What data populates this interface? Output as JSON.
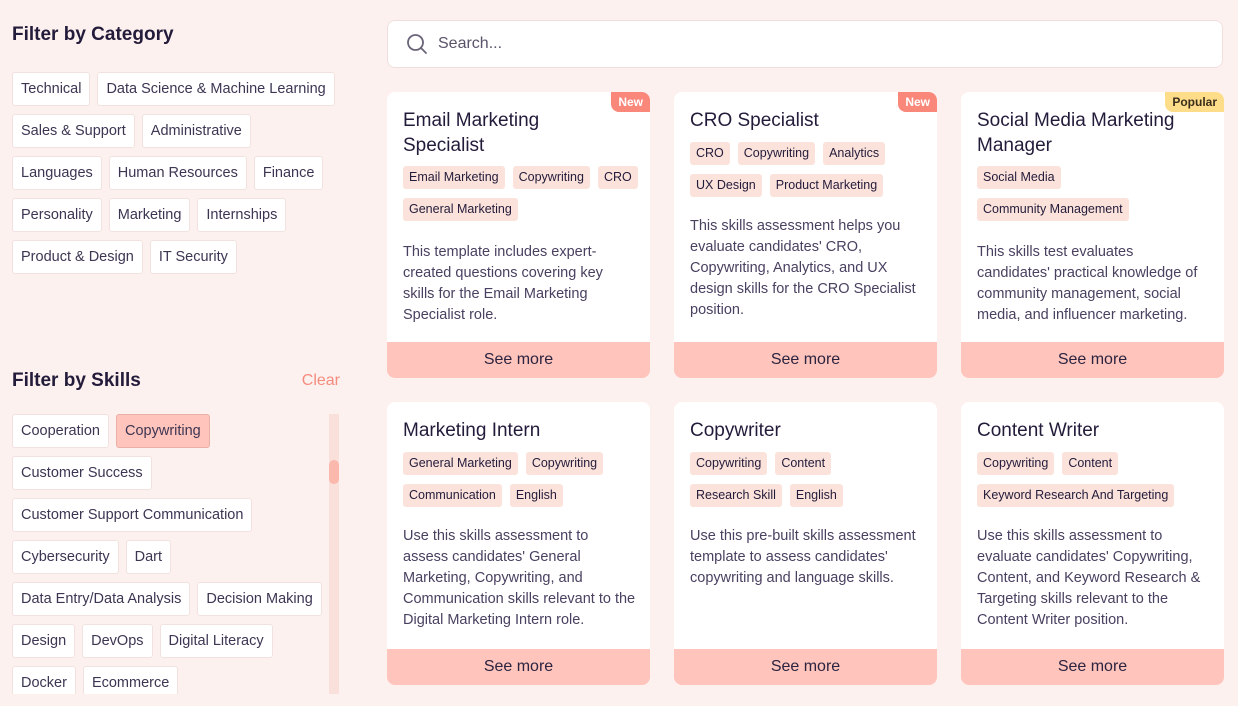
{
  "sidebar": {
    "category_title": "Filter by Category",
    "categories": [
      "Technical",
      "Data Science & Machine Learning",
      "Sales & Support",
      "Administrative",
      "Languages",
      "Human Resources",
      "Finance",
      "Personality",
      "Marketing",
      "Internships",
      "Product & Design",
      "IT Security"
    ],
    "skills_title": "Filter by Skills",
    "clear_label": "Clear",
    "skills": [
      {
        "label": "Cooperation",
        "selected": false
      },
      {
        "label": "Copywriting",
        "selected": true
      },
      {
        "label": "Customer Success",
        "selected": false
      },
      {
        "label": "Customer Support Communication",
        "selected": false
      },
      {
        "label": "Cybersecurity",
        "selected": false
      },
      {
        "label": "Dart",
        "selected": false
      },
      {
        "label": "Data Entry/Data Analysis",
        "selected": false
      },
      {
        "label": "Decision Making",
        "selected": false
      },
      {
        "label": "Design",
        "selected": false
      },
      {
        "label": "DevOps",
        "selected": false
      },
      {
        "label": "Digital Literacy",
        "selected": false
      },
      {
        "label": "Docker",
        "selected": false
      },
      {
        "label": "Ecommerce",
        "selected": false
      }
    ]
  },
  "search": {
    "placeholder": "Search...",
    "icon": "search-icon"
  },
  "cards": [
    {
      "title": "Email Marketing Specialist",
      "badge": "New",
      "tags": [
        "Email Marketing",
        "Copywriting",
        "CRO",
        "General Marketing"
      ],
      "description": "This template includes expert-created questions covering key skills for the Email Marketing Specialist role.",
      "button": "See more"
    },
    {
      "title": "CRO Specialist",
      "badge": "New",
      "tags": [
        "CRO",
        "Copywriting",
        "Analytics",
        "UX Design",
        "Product Marketing"
      ],
      "description": "This skills assessment helps you evaluate candidates' CRO, Copywriting, Analytics, and UX design skills for the CRO Specialist position.",
      "button": "See more"
    },
    {
      "title": "Social Media Marketing Manager",
      "badge": "Popular",
      "tags": [
        "Social Media",
        "Community Management"
      ],
      "description": "This skills test evaluates candidates' practical knowledge of community management, social media, and influencer marketing.",
      "button": "See more"
    },
    {
      "title": "Marketing Intern",
      "badge": "",
      "tags": [
        "General Marketing",
        "Copywriting",
        "Communication",
        "English"
      ],
      "description": "Use this skills assessment to assess candidates' General Marketing, Copywriting, and Communication skills relevant to the Digital Marketing Intern role.",
      "button": "See more"
    },
    {
      "title": "Copywriter",
      "badge": "",
      "tags": [
        "Copywriting",
        "Content",
        "Research Skill",
        "English"
      ],
      "description": "Use this pre-built skills assessment template to assess candidates' copywriting and language skills.",
      "button": "See more"
    },
    {
      "title": "Content Writer",
      "badge": "",
      "tags": [
        "Copywriting",
        "Content",
        "Keyword Research And Targeting"
      ],
      "description": "Use this skills assessment to evaluate candidates' Copywriting, Content, and Keyword Research & Targeting skills relevant to the Content Writer position.",
      "button": "See more"
    }
  ],
  "colors": {
    "background": "#fdf1ef",
    "accent": "#ffc4bb",
    "new_badge": "#f9877a",
    "popular_badge": "#fddd8a",
    "tag": "#fbe3dc"
  }
}
